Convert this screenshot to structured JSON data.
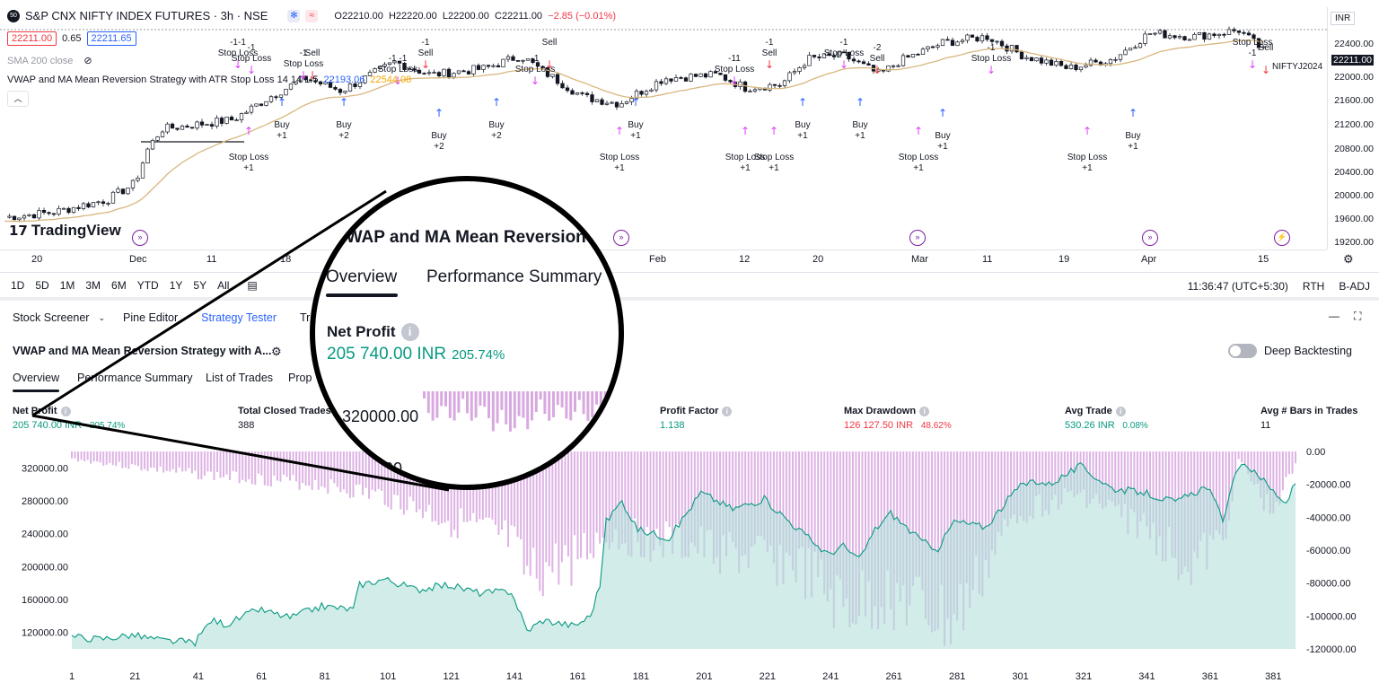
{
  "header": {
    "badge": "50",
    "symbol": "S&P CNX NIFTY INDEX FUTURES · 3h · NSE",
    "ohlc": {
      "open": "O22210.00",
      "high": "H22220.00",
      "low": "L22200.00",
      "close": "C22211.00",
      "change": "−2.85 (−0.01%)"
    },
    "sell_price": "22211.00",
    "spread": "0.65",
    "buy_price": "22211.65",
    "sma_label": "SMA 200 close",
    "strategy_label": "VWAP and MA Mean Reversion Strategy with ATR Stop Loss 14 14 1.5",
    "strategy_val1": "22193.06",
    "strategy_val2": "22544.08"
  },
  "price_axis": {
    "currency": "INR",
    "labels": [
      "22400.00",
      "22211.00",
      "22000.00",
      "21600.00",
      "21200.00",
      "20800.00",
      "20400.00",
      "20000.00",
      "19600.00",
      "19200.00"
    ],
    "symbol_tag": "NIFTYJ2024"
  },
  "time_axis": {
    "labels": [
      "20",
      "Dec",
      "11",
      "18",
      "Feb",
      "12",
      "20",
      "Mar",
      "11",
      "19",
      "Apr",
      "15"
    ]
  },
  "signals": [
    {
      "line1": "-1-1",
      "line2": "Stop Loss"
    },
    {
      "line1": "-1",
      "line2": "Stop Loss"
    },
    {
      "line1": "Sell",
      "line2": ""
    },
    {
      "line1": "Stop Loss",
      "line2": "+1"
    },
    {
      "line1": "Buy",
      "line2": "+1"
    },
    {
      "line1": "Buy",
      "line2": "+2"
    },
    {
      "line1": "-1",
      "line2": "Stop Loss"
    },
    {
      "line1": "-1 -1",
      "line2": "Stop Loss"
    },
    {
      "line1": "-1",
      "line2": "Sell"
    },
    {
      "line1": "Buy",
      "line2": "+2"
    },
    {
      "line1": "Buy",
      "line2": "+2"
    },
    {
      "line1": "-1",
      "line2": "Stop Loss"
    },
    {
      "line1": "Sell",
      "line2": ""
    },
    {
      "line1": "Stop Loss",
      "line2": "+1"
    },
    {
      "line1": "Buy",
      "line2": "+1"
    },
    {
      "line1": "-11",
      "line2": "Stop Loss"
    },
    {
      "line1": "-1",
      "line2": "Sell"
    },
    {
      "line1": "Stop Loss",
      "line2": "+1"
    },
    {
      "line1": "Stop Loss",
      "line2": "+1"
    },
    {
      "line1": "Buy",
      "line2": "+1"
    },
    {
      "line1": "-1",
      "line2": "Stop Loss"
    },
    {
      "line1": "-2",
      "line2": "Sell"
    },
    {
      "line1": "Buy",
      "line2": "+1"
    },
    {
      "line1": "Stop Loss",
      "line2": "+1"
    },
    {
      "line1": "Buy",
      "line2": "+1"
    },
    {
      "line1": "-1",
      "line2": "Stop Loss"
    },
    {
      "line1": "Stop Loss",
      "line2": "+1"
    },
    {
      "line1": "Buy",
      "line2": "+1"
    },
    {
      "line1": "Stop Loss",
      "line2": "-1"
    },
    {
      "line1": "Sell",
      "line2": ""
    }
  ],
  "range_bar": {
    "ranges": [
      "1D",
      "5D",
      "1M",
      "3M",
      "6M",
      "YTD",
      "1Y",
      "5Y",
      "All"
    ],
    "time": "11:36:47 (UTC+5:30)",
    "rth": "RTH",
    "badj": "B-ADJ"
  },
  "bottom_tabs": [
    "Stock Screener",
    "Pine Editor",
    "Strategy Tester",
    "Tr"
  ],
  "strategy": {
    "name": "VWAP and MA Mean Reversion Strategy with A...",
    "deep_backtesting": "Deep Backtesting",
    "sub_tabs": [
      "Overview",
      "Performance Summary",
      "List of Trades",
      "Prop"
    ]
  },
  "metrics": [
    {
      "label": "Net Profit",
      "value": "205 740.00 INR",
      "extra": "205.74%",
      "tone": "pos"
    },
    {
      "label": "Total Closed Trades",
      "value": "388",
      "extra": "",
      "tone": ""
    },
    {
      "label": "Profit Factor",
      "value": "1.138",
      "extra": "",
      "tone": "pos"
    },
    {
      "label": "Max Drawdown",
      "value": "126 127.50 INR",
      "extra": "48.62%",
      "tone": "neg"
    },
    {
      "label": "Avg Trade",
      "value": "530.26 INR",
      "extra": "0.08%",
      "tone": "pos"
    },
    {
      "label": "Avg # Bars in Trades",
      "value": "11",
      "extra": "",
      "tone": ""
    }
  ],
  "magnifier": {
    "title": "VWAP and MA Mean Reversion St",
    "tab_overview": "Overview",
    "tab_performance": "Performance Summary",
    "net_profit_label": "Net Profit",
    "net_profit_value": "205 740.00 INR",
    "net_profit_pct": "205.74%",
    "y_label_1": "320000.00",
    "y_label_2": "0.00"
  },
  "chart_data": {
    "type": "area",
    "title": "",
    "xlabel": "",
    "ylabel": "",
    "x_ticks": [
      1,
      21,
      41,
      61,
      81,
      101,
      121,
      141,
      161,
      181,
      201,
      221,
      241,
      261,
      281,
      301,
      321,
      341,
      361,
      381
    ],
    "left_axis": {
      "labels": [
        "320000.00",
        "280000.00",
        "240000.00",
        "200000.00",
        "160000.00",
        "120000.00"
      ],
      "ylim": [
        100000,
        340000
      ]
    },
    "right_axis": {
      "labels": [
        "0.00",
        "-20000.00",
        "-40000.00",
        "-60000.00",
        "-80000.00",
        "-100000.00",
        "-120000.00"
      ],
      "ylim": [
        -120000,
        0
      ]
    },
    "series": [
      {
        "name": "",
        "color": "#089981",
        "x": [
          1,
          10,
          20,
          30,
          40,
          45,
          50,
          60,
          70,
          80,
          90,
          92,
          100,
          110,
          120,
          130,
          140,
          145,
          150,
          160,
          165,
          168,
          170,
          175,
          180,
          190,
          200,
          210,
          220,
          230,
          240,
          245,
          250,
          255,
          260,
          270,
          275,
          280,
          290,
          300,
          305,
          310,
          320,
          330,
          340,
          350,
          360,
          365,
          370,
          375,
          380,
          385,
          388
        ],
        "values": [
          115000,
          112000,
          117000,
          110000,
          108000,
          135000,
          130000,
          148000,
          138000,
          152000,
          148000,
          178000,
          185000,
          172000,
          178000,
          168000,
          170000,
          122000,
          135000,
          128000,
          140000,
          178000,
          255000,
          280000,
          245000,
          235000,
          290000,
          270000,
          282000,
          248000,
          215000,
          225000,
          208000,
          245000,
          265000,
          230000,
          222000,
          255000,
          248000,
          295000,
          305000,
          300000,
          322000,
          295000,
          290000,
          278000,
          298000,
          258000,
          322000,
          318000,
          295000,
          278000,
          300000
        ]
      },
      {
        "name": "",
        "color": "#ce93d8",
        "x": [
          1,
          20,
          40,
          60,
          80,
          100,
          120,
          140,
          145,
          160,
          170,
          190,
          210,
          230,
          245,
          260,
          280,
          300,
          320,
          340,
          355,
          365,
          370,
          380,
          388
        ],
        "values": [
          -5000,
          -10000,
          -15000,
          -18000,
          -22000,
          -30000,
          -45000,
          -60000,
          -85000,
          -70000,
          -55000,
          -60000,
          -68000,
          -75000,
          -105000,
          -95000,
          -115000,
          -40000,
          -28000,
          -50000,
          -75000,
          -60000,
          -5000,
          -40000,
          -10000
        ]
      }
    ]
  }
}
